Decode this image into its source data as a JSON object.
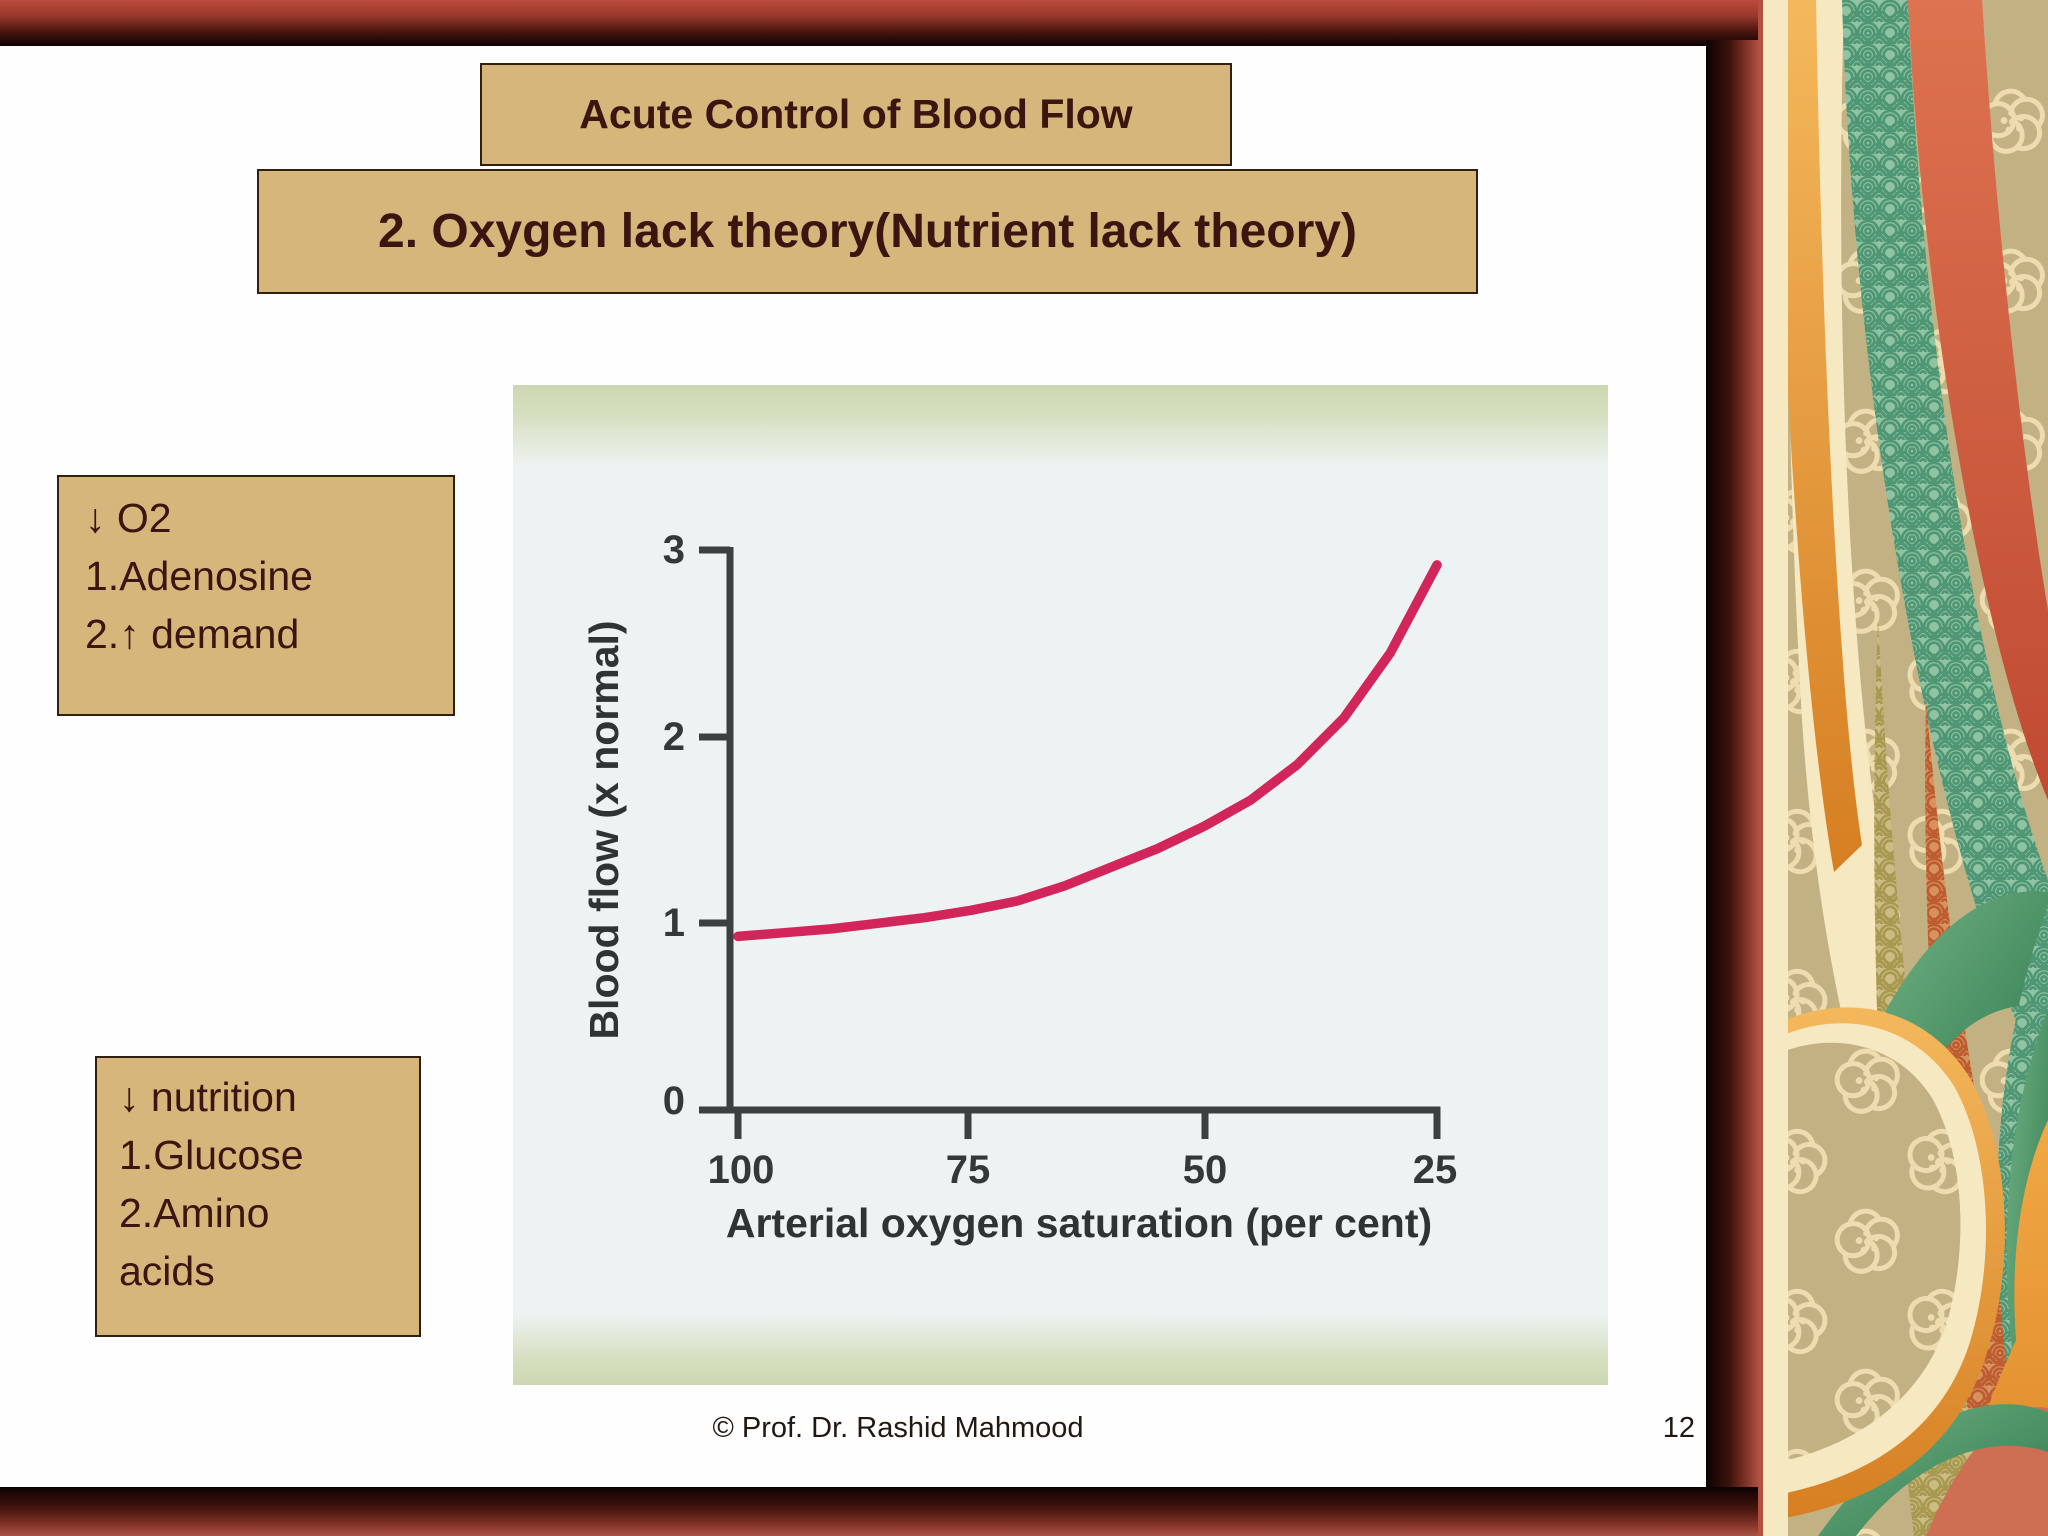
{
  "slide": {
    "title": "Acute Control of Blood Flow",
    "subtitle": "2. Oxygen lack theory(Nutrient lack theory)",
    "note_box_1": {
      "lines": [
        "↓ O2",
        "1.Adenosine",
        "2.↑ demand"
      ]
    },
    "note_box_2": {
      "lines": [
        "↓ nutrition",
        "1.Glucose",
        "2.Amino",
        "acids"
      ]
    },
    "footer": {
      "credit": "© Prof. Dr. Rashid Mahmood",
      "page_number": "12"
    }
  },
  "chart_data": {
    "type": "line",
    "title": "",
    "xlabel": "Arterial oxygen saturation (per cent)",
    "ylabel": "Blood flow (x normal)",
    "x_ticks": [
      100,
      75,
      50,
      25
    ],
    "y_ticks": [
      3,
      2,
      1,
      0
    ],
    "x_axis_reversed": true,
    "xlim": [
      100,
      25
    ],
    "ylim": [
      0,
      3
    ],
    "grid": false,
    "legend": "none",
    "series": [
      {
        "name": "Blood flow vs arterial oxygen saturation",
        "color": "#d2255c",
        "x": [
          100,
          95,
          90,
          85,
          80,
          75,
          70,
          65,
          60,
          55,
          50,
          45,
          40,
          35,
          30,
          25
        ],
        "y": [
          0.93,
          0.95,
          0.97,
          1.0,
          1.03,
          1.07,
          1.12,
          1.2,
          1.3,
          1.4,
          1.52,
          1.66,
          1.85,
          2.1,
          2.45,
          2.92
        ]
      }
    ]
  },
  "colors": {
    "box_tan": "#d7b67c",
    "box_border": "#30200f",
    "text_maroon": "#3c1510",
    "frame_red": "#b2503f",
    "frame_dark": "#0c0202",
    "chart_bg": "#edf3f2",
    "chart_band_green": "#ccd8b2",
    "axis_gray": "#3c4043",
    "curve_pink": "#d2255c",
    "panel_tan": "#c2b183",
    "panel_cream": "#f6e8c0",
    "panel_teal": "#8fc3a2",
    "panel_orange": "#d67e22",
    "panel_green": "#2e7a4e",
    "panel_salmon": "#ce6f53"
  }
}
